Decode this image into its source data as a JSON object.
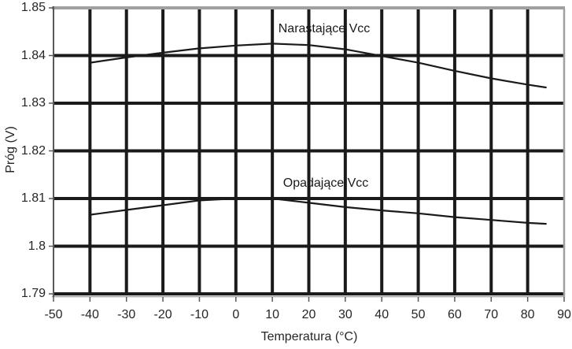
{
  "chart_data": {
    "type": "line",
    "title": "",
    "xlabel": "Temperatura (°C)",
    "ylabel": "Próg (V)",
    "xlim": [
      -50,
      90
    ],
    "ylim": [
      1.79,
      1.85
    ],
    "x_ticks": [
      -50,
      -40,
      -30,
      -20,
      -10,
      0,
      10,
      20,
      30,
      40,
      50,
      60,
      70,
      80,
      90
    ],
    "y_tick_labels": [
      "1.85",
      "1.84",
      "1.83",
      "1.82",
      "1.81",
      "1.8",
      "1.79"
    ],
    "grid": true,
    "legend_position": "inline-annotations",
    "series": [
      {
        "name": "Narastające Vcc",
        "x": [
          -40,
          -30,
          -20,
          -10,
          0,
          10,
          20,
          30,
          40,
          50,
          60,
          70,
          80,
          85
        ],
        "y": [
          1.8385,
          1.8396,
          1.8406,
          1.8415,
          1.8421,
          1.8425,
          1.8422,
          1.8413,
          1.8399,
          1.8385,
          1.8368,
          1.8352,
          1.8339,
          1.8333
        ]
      },
      {
        "name": "Opadające Vcc",
        "x": [
          -40,
          -30,
          -20,
          -10,
          0,
          10,
          20,
          30,
          40,
          50,
          60,
          70,
          80,
          85
        ],
        "y": [
          1.8066,
          1.8076,
          1.8086,
          1.8096,
          1.81,
          1.81,
          1.8091,
          1.8082,
          1.8075,
          1.8069,
          1.8061,
          1.8055,
          1.8049,
          1.8047
        ]
      }
    ],
    "colors": {
      "grid": "#1a1a1a",
      "border": "#a0a0a0",
      "axis": "#595959",
      "line": "#1a1a1a",
      "text": "#262626",
      "background": "#ffffff"
    }
  }
}
